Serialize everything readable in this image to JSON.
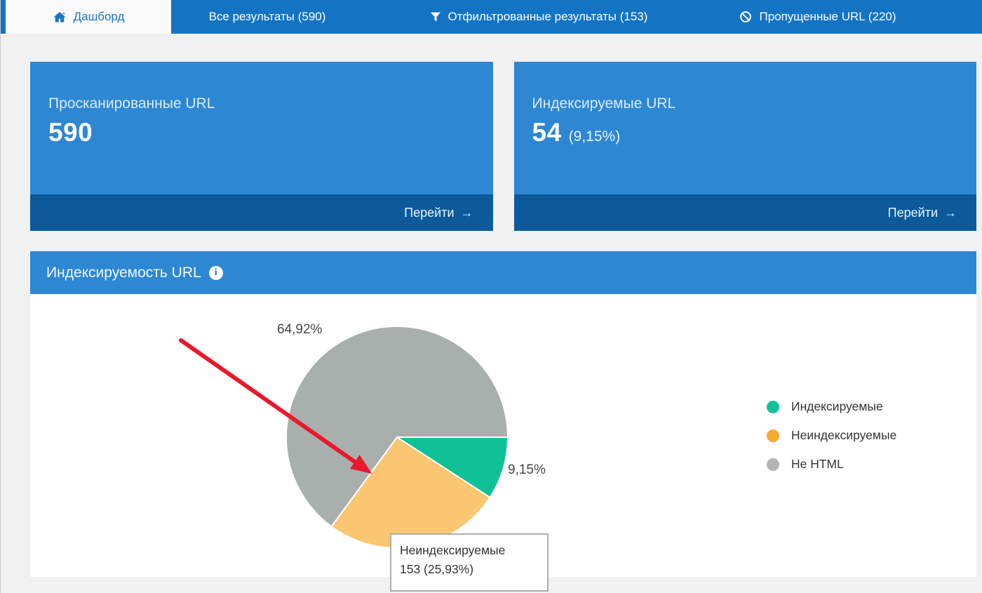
{
  "tabs": [
    {
      "label": "Дашборд",
      "active": true,
      "icon": "home"
    },
    {
      "label": "Все результаты (590)",
      "active": false,
      "icon": null
    },
    {
      "label": "Отфильтрованные результаты (153)",
      "active": false,
      "icon": "filter"
    },
    {
      "label": "Пропущенные URL (220)",
      "active": false,
      "icon": "blocked"
    }
  ],
  "cards": [
    {
      "title": "Просканированные URL",
      "value": "590",
      "extra": "",
      "action_label": "Перейти",
      "action_arrow": "→"
    },
    {
      "title": "Индексируемые URL",
      "value": "54",
      "extra": "(9,15%)",
      "action_label": "Перейти",
      "action_arrow": "→"
    }
  ],
  "panel": {
    "title": "Индексируемость URL",
    "info_icon_glyph": "i"
  },
  "chart_data": {
    "type": "pie",
    "title": "Индексируемость URL",
    "total_urls": 590,
    "start": "3-oclock",
    "direction": "clockwise",
    "legend_position": "right",
    "slices": [
      {
        "label": "Индексируемые",
        "count": 54,
        "pct": 9.15,
        "pct_label": "9,15%",
        "slice_color": "#10c197",
        "legend_color": "#10c197",
        "hovered": false
      },
      {
        "label": "Неиндексируемые",
        "count": 153,
        "pct": 25.93,
        "pct_label": "25,93%",
        "slice_color": "#fbc672",
        "legend_color": "#f8a932",
        "hovered": true
      },
      {
        "label": "Не HTML",
        "pct": 64.92,
        "pct_label": "64,92%",
        "slice_color": "#a9afac",
        "legend_color": "#b5b5b5",
        "hovered": false
      }
    ],
    "tooltip": {
      "title": "Неиндексируемые",
      "value_text": "153 (25,93%)"
    },
    "annotation": "red arrow pointing at the Неиндексируемые slice"
  },
  "colors": {
    "tabbar_blue": "#1474c4",
    "card_body_blue": "#2e87d2",
    "card_footer_blue": "#0c5a9a",
    "arrow_red": "#e8192c"
  }
}
